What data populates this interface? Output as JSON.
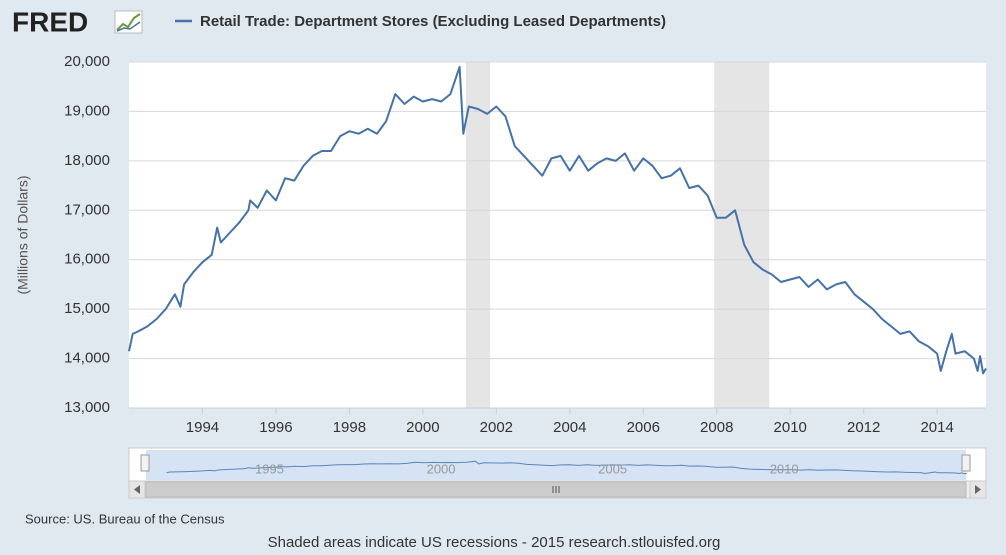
{
  "logo": "FRED",
  "source": "Source: US. Bureau of the Census",
  "footer": "Shaded areas indicate US recessions - 2015 research.stlouisfed.org",
  "chart_data": {
    "type": "line",
    "y_label": "(Millions of Dollars)",
    "x": [
      1992.0,
      1992.1,
      1992.25,
      1992.5,
      1992.75,
      1993.0,
      1993.25,
      1993.4,
      1993.5,
      1993.75,
      1994.0,
      1994.25,
      1994.4,
      1994.5,
      1994.75,
      1995.0,
      1995.25,
      1995.3,
      1995.5,
      1995.75,
      1996.0,
      1996.25,
      1996.5,
      1996.75,
      1997.0,
      1997.25,
      1997.5,
      1997.75,
      1998.0,
      1998.25,
      1998.5,
      1998.75,
      1999.0,
      1999.25,
      1999.5,
      1999.75,
      2000.0,
      2000.25,
      2000.5,
      2000.75,
      2001.0,
      2001.1,
      2001.25,
      2001.5,
      2001.75,
      2002.0,
      2002.25,
      2002.5,
      2002.75,
      2003.0,
      2003.25,
      2003.5,
      2003.75,
      2004.0,
      2004.25,
      2004.5,
      2004.75,
      2005.0,
      2005.25,
      2005.5,
      2005.75,
      2006.0,
      2006.25,
      2006.5,
      2006.75,
      2007.0,
      2007.25,
      2007.5,
      2007.75,
      2008.0,
      2008.25,
      2008.5,
      2008.75,
      2009.0,
      2009.25,
      2009.5,
      2009.75,
      2010.0,
      2010.25,
      2010.5,
      2010.75,
      2011.0,
      2011.25,
      2011.5,
      2011.75,
      2012.0,
      2012.25,
      2012.5,
      2012.75,
      2013.0,
      2013.25,
      2013.5,
      2013.75,
      2014.0,
      2014.1,
      2014.25,
      2014.4,
      2014.5,
      2014.75,
      2015.0,
      2015.1,
      2015.17,
      2015.25,
      2015.33
    ],
    "series": [
      {
        "name": "Retail Trade: Department Stores (Excluding Leased Departments)",
        "color": "#4572a7",
        "values": [
          14150,
          14500,
          14550,
          14650,
          14800,
          15000,
          15300,
          15050,
          15500,
          15750,
          15950,
          16100,
          16650,
          16350,
          16550,
          16750,
          17000,
          17200,
          17050,
          17400,
          17200,
          17650,
          17600,
          17900,
          18100,
          18200,
          18200,
          18500,
          18600,
          18550,
          18650,
          18550,
          18800,
          19350,
          19150,
          19300,
          19200,
          19250,
          19200,
          19350,
          19900,
          18550,
          19100,
          19050,
          18950,
          19100,
          18900,
          18300,
          18100,
          17900,
          17700,
          18050,
          18100,
          17800,
          18100,
          17800,
          17950,
          18050,
          18000,
          18150,
          17800,
          18050,
          17900,
          17650,
          17700,
          17850,
          17450,
          17500,
          17300,
          16850,
          16850,
          17000,
          16300,
          15950,
          15800,
          15700,
          15550,
          15600,
          15650,
          15450,
          15600,
          15400,
          15500,
          15550,
          15300,
          15150,
          15000,
          14800,
          14650,
          14500,
          14550,
          14350,
          14250,
          14100,
          13750,
          14150,
          14500,
          14100,
          14150,
          14000,
          13750,
          14050,
          13700,
          13800
        ]
      }
    ],
    "xlim": [
      1992.0,
      2015.33
    ],
    "xticks": [
      1994,
      1996,
      1998,
      2000,
      2002,
      2004,
      2006,
      2008,
      2010,
      2012,
      2014
    ],
    "ylim": [
      13000,
      20000
    ],
    "yticks": [
      {
        "value": 13000,
        "label": "13,000"
      },
      {
        "value": 14000,
        "label": "14,000"
      },
      {
        "value": 15000,
        "label": "15,000"
      },
      {
        "value": 16000,
        "label": "16,000"
      },
      {
        "value": 17000,
        "label": "17,000"
      },
      {
        "value": 18000,
        "label": "18,000"
      },
      {
        "value": 19000,
        "label": "19,000"
      },
      {
        "value": 20000,
        "label": "20,000"
      }
    ],
    "grid": true,
    "recessions": [
      [
        2001.17,
        2001.83
      ],
      [
        2007.93,
        2009.43
      ]
    ],
    "navigator": {
      "xlim": [
        1991.4,
        2015.3
      ],
      "xticks": [
        1995,
        2000,
        2005,
        2010
      ]
    }
  }
}
